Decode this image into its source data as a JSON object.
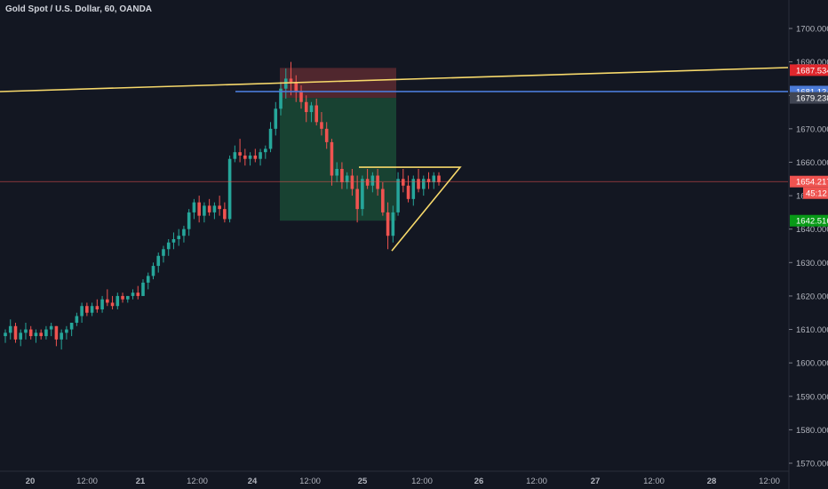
{
  "header": {
    "title": "Gold Spot / U.S. Dollar, 60, OANDA"
  },
  "colors": {
    "up": "#26a69a",
    "down": "#ef5350",
    "background": "#131722",
    "grid": "#1e222d",
    "axis_text": "#b2b5be",
    "yellow_line": "#f7d96b",
    "blue_line": "#4b7bd8"
  },
  "chart_data": {
    "type": "candlestick",
    "y_axis": {
      "ticks": [
        1570,
        1580,
        1590,
        1600,
        1610,
        1620,
        1630,
        1640,
        1650,
        1660,
        1670,
        1680,
        1690,
        1700
      ],
      "tick_labels": [
        "1570.000",
        "1580.000",
        "1590.000",
        "1600.000",
        "1610.000",
        "1620.000",
        "1630.000",
        "1640.000",
        "1650.000",
        "1660.000",
        "1670.000",
        "1680.000",
        "1690.000",
        "1700.000"
      ],
      "ylim": [
        1568,
        1706
      ]
    },
    "x_axis": {
      "tick_labels": [
        "20",
        "12:00",
        "21",
        "12:00",
        "24",
        "12:00",
        "25",
        "12:00",
        "26",
        "12:00",
        "27",
        "12:00",
        "28",
        "12:00"
      ]
    },
    "price_labels": [
      {
        "value": 1687.534,
        "label": "1687.534",
        "color": "#e0272d"
      },
      {
        "value": 1681.134,
        "label": "1681.134",
        "color": "#4b7bd8"
      },
      {
        "value": 1679.238,
        "label": "1679.238",
        "color": "#404553"
      },
      {
        "value": 1654.217,
        "label": "1654.217",
        "color": "#ef5350"
      },
      {
        "value": 1642.516,
        "label": "1642.516",
        "color": "#089a17"
      }
    ],
    "countdown_label": "45:12",
    "last_price": 1654.217,
    "risk_box": {
      "entry": 1679.238,
      "stop": 1688.2,
      "target": 1642.516
    },
    "horizontal_line": 1681.134,
    "trend_line": {
      "p1": [
        0,
        1681.0
      ],
      "p2": [
        932,
        1688.0
      ]
    },
    "triangle": {
      "top_left": 1658.5,
      "top_right": 1658.5,
      "bottom": 1633.5
    },
    "candles_ohlc": [
      [
        1608,
        1610,
        1606,
        1609
      ],
      [
        1609,
        1613,
        1607,
        1611
      ],
      [
        1611,
        1612,
        1606,
        1607
      ],
      [
        1607,
        1610,
        1605,
        1609
      ],
      [
        1609,
        1612,
        1607,
        1610
      ],
      [
        1610,
        1611,
        1607,
        1608
      ],
      [
        1608,
        1610,
        1606,
        1609
      ],
      [
        1609,
        1610,
        1607,
        1608
      ],
      [
        1608,
        1611,
        1607,
        1610
      ],
      [
        1610,
        1612,
        1608,
        1611
      ],
      [
        1611,
        1611,
        1605,
        1607
      ],
      [
        1607,
        1610,
        1604,
        1609
      ],
      [
        1609,
        1611,
        1607,
        1610
      ],
      [
        1610,
        1612,
        1608,
        1612
      ],
      [
        1612,
        1615,
        1611,
        1614
      ],
      [
        1614,
        1618,
        1612,
        1617
      ],
      [
        1617,
        1618,
        1614,
        1615
      ],
      [
        1615,
        1618,
        1614,
        1617
      ],
      [
        1617,
        1619,
        1615,
        1616
      ],
      [
        1616,
        1620,
        1615,
        1619
      ],
      [
        1619,
        1622,
        1617,
        1618
      ],
      [
        1618,
        1620,
        1616,
        1617
      ],
      [
        1617,
        1621,
        1616,
        1620
      ],
      [
        1620,
        1621,
        1618,
        1619
      ],
      [
        1619,
        1620,
        1618,
        1620
      ],
      [
        1620,
        1622,
        1619,
        1621
      ],
      [
        1621,
        1623,
        1619,
        1620
      ],
      [
        1620,
        1625,
        1620,
        1624
      ],
      [
        1624,
        1627,
        1622,
        1626
      ],
      [
        1626,
        1630,
        1625,
        1629
      ],
      [
        1629,
        1633,
        1627,
        1632
      ],
      [
        1632,
        1635,
        1630,
        1634
      ],
      [
        1634,
        1637,
        1632,
        1636
      ],
      [
        1636,
        1639,
        1634,
        1637
      ],
      [
        1637,
        1640,
        1635,
        1638
      ],
      [
        1638,
        1641,
        1636,
        1640
      ],
      [
        1640,
        1646,
        1638,
        1645
      ],
      [
        1645,
        1649,
        1643,
        1648
      ],
      [
        1648,
        1650,
        1642,
        1644
      ],
      [
        1644,
        1648,
        1642,
        1647
      ],
      [
        1647,
        1649,
        1644,
        1645
      ],
      [
        1645,
        1648,
        1643,
        1647
      ],
      [
        1647,
        1650,
        1644,
        1646
      ],
      [
        1646,
        1648,
        1642,
        1643
      ],
      [
        1643,
        1662,
        1642,
        1661
      ],
      [
        1661,
        1665,
        1660,
        1663
      ],
      [
        1663,
        1667,
        1660,
        1662
      ],
      [
        1662,
        1664,
        1659,
        1661
      ],
      [
        1661,
        1663,
        1659,
        1662
      ],
      [
        1662,
        1664,
        1660,
        1661
      ],
      [
        1661,
        1664,
        1659,
        1663
      ],
      [
        1663,
        1665,
        1661,
        1664
      ],
      [
        1664,
        1672,
        1663,
        1670
      ],
      [
        1670,
        1678,
        1668,
        1676
      ],
      [
        1676,
        1684,
        1674,
        1682
      ],
      [
        1682,
        1688,
        1679,
        1685
      ],
      [
        1685,
        1690,
        1680,
        1684
      ],
      [
        1684,
        1686,
        1678,
        1681
      ],
      [
        1681,
        1683,
        1676,
        1678
      ],
      [
        1678,
        1680,
        1672,
        1675
      ],
      [
        1675,
        1678,
        1672,
        1677
      ],
      [
        1677,
        1679,
        1671,
        1672
      ],
      [
        1672,
        1675,
        1668,
        1670
      ],
      [
        1670,
        1672,
        1664,
        1666
      ],
      [
        1666,
        1667,
        1653,
        1656
      ],
      [
        1656,
        1660,
        1654,
        1658
      ],
      [
        1658,
        1660,
        1652,
        1654
      ],
      [
        1654,
        1657,
        1652,
        1656
      ],
      [
        1656,
        1658,
        1650,
        1652
      ],
      [
        1652,
        1656,
        1642,
        1646
      ],
      [
        1646,
        1656,
        1644,
        1655
      ],
      [
        1655,
        1658,
        1652,
        1653
      ],
      [
        1653,
        1657,
        1651,
        1656
      ],
      [
        1656,
        1658,
        1650,
        1652
      ],
      [
        1652,
        1654,
        1644,
        1645
      ],
      [
        1645,
        1648,
        1634,
        1638
      ],
      [
        1638,
        1647,
        1636,
        1645
      ],
      [
        1645,
        1657,
        1644,
        1655
      ],
      [
        1655,
        1658,
        1651,
        1653
      ],
      [
        1653,
        1656,
        1648,
        1649
      ],
      [
        1649,
        1656,
        1647,
        1655
      ],
      [
        1655,
        1658,
        1651,
        1652
      ],
      [
        1652,
        1656,
        1650,
        1655
      ],
      [
        1655,
        1657,
        1652,
        1654
      ],
      [
        1654,
        1657,
        1652,
        1656
      ],
      [
        1656,
        1657,
        1653,
        1654
      ]
    ]
  }
}
